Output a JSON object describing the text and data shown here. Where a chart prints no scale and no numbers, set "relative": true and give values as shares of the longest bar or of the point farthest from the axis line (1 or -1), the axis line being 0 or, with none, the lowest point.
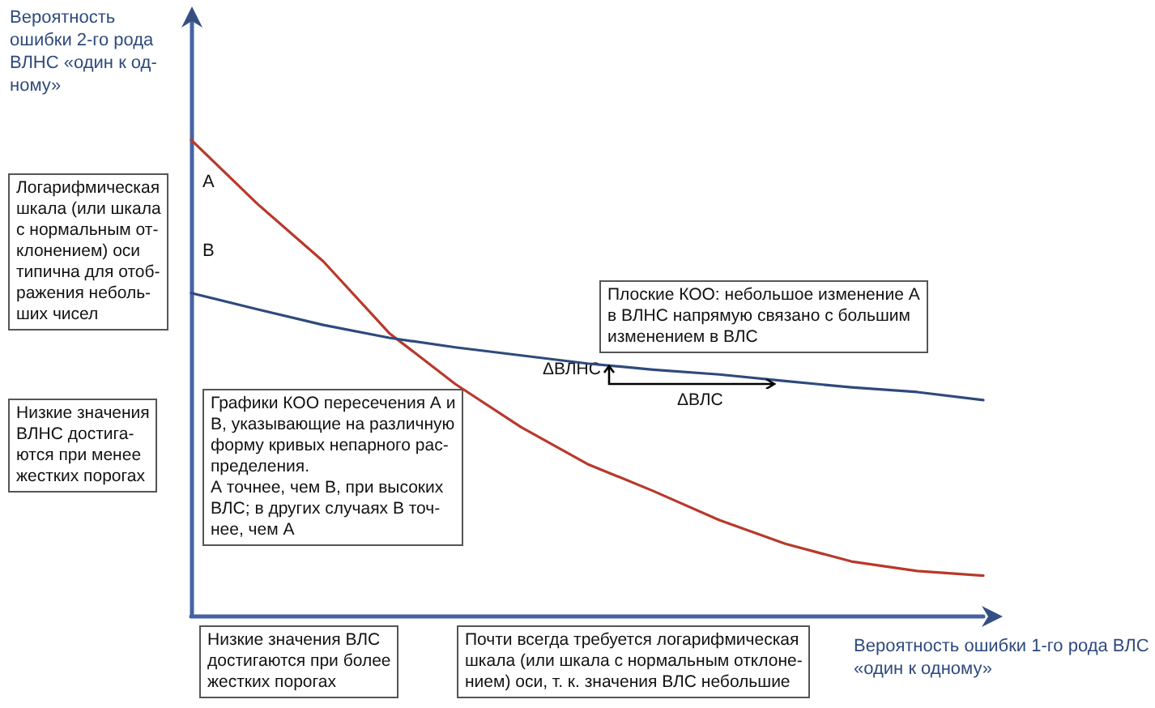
{
  "chart_data": {
    "type": "line",
    "relative": true,
    "grid": false,
    "marker": "none",
    "ylabel": "Вероятность\nошибки 2-го рода\nВЛНС «один к од-\nному»",
    "xlabel": "Вероятность ошибки 1-го рода ВЛС\n«один к одному»",
    "categories": [
      null,
      null,
      null,
      null,
      null,
      null,
      null,
      null,
      null,
      null,
      null,
      null,
      null
    ],
    "series": [
      {
        "name": "A",
        "color": "#b8392b",
        "values": [
          1.0,
          0.866,
          0.745,
          0.594,
          0.487,
          0.396,
          0.319,
          0.262,
          0.201,
          0.151,
          0.114,
          0.094,
          0.084
        ]
      },
      {
        "name": "B",
        "color": "#2e4a7d",
        "values": [
          0.678,
          0.644,
          0.611,
          0.584,
          0.564,
          0.547,
          0.53,
          0.517,
          0.507,
          0.493,
          0.48,
          0.47,
          0.453
        ]
      }
    ],
    "annotations": [
      "Логарифмическая\nшкала (или шкала\nс нормальным от-\nклонением) оси\nтипична для отоб-\nражения неболь-\nших чисел",
      "Низкие значения\nВЛНС достига-\nются при менее\nжестких порогах",
      "Графики КОО пересечения А и\nВ, указывающие на различную\nформу кривых непарного рас-\nпределения.\nА точнее, чем В, при высоких\nВЛС; в других случаях В точ-\nнее, чем А",
      "Плоские КОО: небольшое изменение А\nв ВЛНС напрямую связано с большим\nизменением в ВЛС",
      "Низкие значения ВЛС\nдостигаются при более\nжестких порогах",
      "Почти всегда требуется логарифмическая\nшкала (или шкала с нормальным отклоне-\nнием) оси, т. к. значения ВЛС небольшие",
      "ΔВЛНС",
      "ΔВЛС"
    ]
  }
}
